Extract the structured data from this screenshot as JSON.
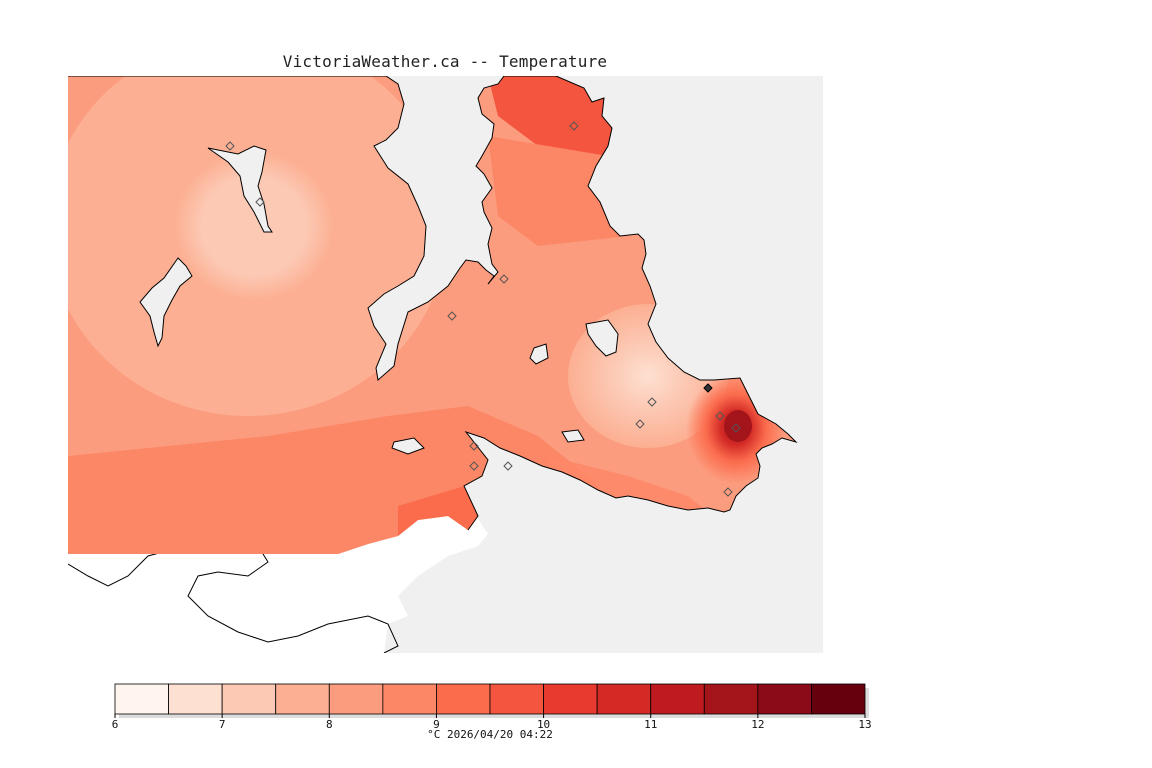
{
  "title": "VictoriaWeather.ca -- Temperature",
  "colorbar": {
    "unit_timestamp": "°C  2026/04/20 04:22",
    "ticks": [
      "6",
      "7",
      "8",
      "9",
      "10",
      "11",
      "12",
      "13"
    ],
    "colors": [
      "#fff4ee",
      "#fee0d2",
      "#fcc9b4",
      "#fcaf92",
      "#fc9c7e",
      "#fc8766",
      "#fb6c4d",
      "#f4553f",
      "#e93a2f",
      "#d42a26",
      "#bf1a1f",
      "#a3141b",
      "#8c0b18",
      "#67000d"
    ]
  },
  "colors": {
    "ocean": "#f0f0f0",
    "land_outside": "#ffffff",
    "coast": "#000000"
  }
}
